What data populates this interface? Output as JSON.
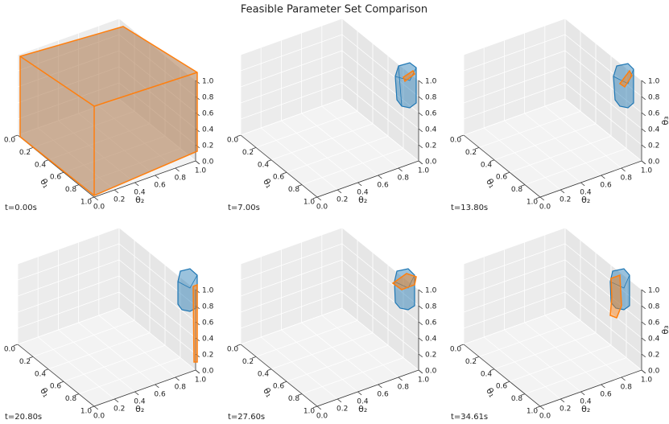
{
  "title": "Feasible Parameter Set Comparison",
  "chart_data": [
    {
      "type": "3d",
      "caption": "t=0.00s",
      "xlabel": "θ₁",
      "ylabel": "θ₂",
      "xlim": [
        0,
        1
      ],
      "ylim": [
        0,
        1
      ],
      "zlim": [
        0,
        1
      ],
      "xticks": [
        {
          "value": 0,
          "label": "0.0"
        },
        {
          "value": 0.2,
          "label": "0.2"
        },
        {
          "value": 0.4,
          "label": "0.4"
        },
        {
          "value": 0.6,
          "label": "0.6"
        },
        {
          "value": 0.8,
          "label": "0.8"
        },
        {
          "value": 1,
          "label": "1.0"
        }
      ],
      "yticks": [
        {
          "value": 0,
          "label": "0.0"
        },
        {
          "value": 0.2,
          "label": "0.2"
        },
        {
          "value": 0.4,
          "label": "0.4"
        },
        {
          "value": 0.6,
          "label": "0.6"
        },
        {
          "value": 0.8,
          "label": "0.8"
        },
        {
          "value": 1,
          "label": "1.0"
        }
      ],
      "zticks": [
        {
          "value": 0,
          "label": "0.0"
        },
        {
          "value": 0.2,
          "label": "0.2"
        },
        {
          "value": 0.4,
          "label": "0.4"
        },
        {
          "value": 0.6,
          "label": "0.6"
        },
        {
          "value": 0.8,
          "label": "0.8"
        },
        {
          "value": 1,
          "label": "1.0"
        }
      ]
    },
    {
      "type": "3d",
      "caption": "t=7.00s",
      "xlabel": "θ₁",
      "ylabel": "θ₂",
      "xlim": [
        0,
        1
      ],
      "ylim": [
        0,
        1
      ],
      "zlim": [
        0,
        1
      ],
      "xticks": [
        {
          "value": 0,
          "label": "0.0"
        },
        {
          "value": 0.2,
          "label": "0.2"
        },
        {
          "value": 0.4,
          "label": "0.4"
        },
        {
          "value": 0.6,
          "label": "0.6"
        },
        {
          "value": 0.8,
          "label": "0.8"
        },
        {
          "value": 1,
          "label": "1.0"
        }
      ],
      "yticks": [
        {
          "value": 0,
          "label": "0.0"
        },
        {
          "value": 0.2,
          "label": "0.2"
        },
        {
          "value": 0.4,
          "label": "0.4"
        },
        {
          "value": 0.6,
          "label": "0.6"
        },
        {
          "value": 0.8,
          "label": "0.8"
        },
        {
          "value": 1,
          "label": "1.0"
        }
      ],
      "zticks": [
        {
          "value": 0,
          "label": "0.0"
        },
        {
          "value": 0.2,
          "label": "0.2"
        },
        {
          "value": 0.4,
          "label": "0.4"
        },
        {
          "value": 0.6,
          "label": "0.6"
        },
        {
          "value": 0.8,
          "label": "0.8"
        },
        {
          "value": 1,
          "label": "1.0"
        }
      ]
    },
    {
      "type": "3d",
      "caption": "t=13.80s",
      "xlabel": "θ₁",
      "ylabel": "θ₂",
      "zlabel": "θ₃",
      "xlim": [
        0,
        1
      ],
      "ylim": [
        0,
        1
      ],
      "zlim": [
        0,
        1
      ],
      "xticks": [
        {
          "value": 0,
          "label": "0.0"
        },
        {
          "value": 0.2,
          "label": "0.2"
        },
        {
          "value": 0.4,
          "label": "0.4"
        },
        {
          "value": 0.6,
          "label": "0.6"
        },
        {
          "value": 0.8,
          "label": "0.8"
        },
        {
          "value": 1,
          "label": "1.0"
        }
      ],
      "yticks": [
        {
          "value": 0,
          "label": "0.0"
        },
        {
          "value": 0.2,
          "label": "0.2"
        },
        {
          "value": 0.4,
          "label": "0.4"
        },
        {
          "value": 0.6,
          "label": "0.6"
        },
        {
          "value": 0.8,
          "label": "0.8"
        },
        {
          "value": 1,
          "label": "1.0"
        }
      ],
      "zticks": [
        {
          "value": 0,
          "label": "0.0"
        },
        {
          "value": 0.2,
          "label": "0.2"
        },
        {
          "value": 0.4,
          "label": "0.4"
        },
        {
          "value": 0.6,
          "label": "0.6"
        },
        {
          "value": 0.8,
          "label": "0.8"
        },
        {
          "value": 1,
          "label": "1.0"
        }
      ]
    },
    {
      "type": "3d",
      "caption": "t=20.80s",
      "xlabel": "θ₁",
      "ylabel": "θ₂",
      "xlim": [
        0,
        1
      ],
      "ylim": [
        0,
        1
      ],
      "zlim": [
        0,
        1
      ],
      "xticks": [
        {
          "value": 0,
          "label": "0.0"
        },
        {
          "value": 0.2,
          "label": "0.2"
        },
        {
          "value": 0.4,
          "label": "0.4"
        },
        {
          "value": 0.6,
          "label": "0.6"
        },
        {
          "value": 0.8,
          "label": "0.8"
        },
        {
          "value": 1,
          "label": "1.0"
        }
      ],
      "yticks": [
        {
          "value": 0,
          "label": "0.0"
        },
        {
          "value": 0.2,
          "label": "0.2"
        },
        {
          "value": 0.4,
          "label": "0.4"
        },
        {
          "value": 0.6,
          "label": "0.6"
        },
        {
          "value": 0.8,
          "label": "0.8"
        },
        {
          "value": 1,
          "label": "1.0"
        }
      ],
      "zticks": [
        {
          "value": 0,
          "label": "0.0"
        },
        {
          "value": 0.2,
          "label": "0.2"
        },
        {
          "value": 0.4,
          "label": "0.4"
        },
        {
          "value": 0.6,
          "label": "0.6"
        },
        {
          "value": 0.8,
          "label": "0.8"
        },
        {
          "value": 1,
          "label": "1.0"
        }
      ]
    },
    {
      "type": "3d",
      "caption": "t=27.60s",
      "xlabel": "θ₁",
      "ylabel": "θ₂",
      "xlim": [
        0,
        1
      ],
      "ylim": [
        0,
        1
      ],
      "zlim": [
        0,
        1
      ],
      "xticks": [
        {
          "value": 0,
          "label": "0.0"
        },
        {
          "value": 0.2,
          "label": "0.2"
        },
        {
          "value": 0.4,
          "label": "0.4"
        },
        {
          "value": 0.6,
          "label": "0.6"
        },
        {
          "value": 0.8,
          "label": "0.8"
        },
        {
          "value": 1,
          "label": "1.0"
        }
      ],
      "yticks": [
        {
          "value": 0,
          "label": "0.0"
        },
        {
          "value": 0.2,
          "label": "0.2"
        },
        {
          "value": 0.4,
          "label": "0.4"
        },
        {
          "value": 0.6,
          "label": "0.6"
        },
        {
          "value": 0.8,
          "label": "0.8"
        },
        {
          "value": 1,
          "label": "1.0"
        }
      ],
      "zticks": [
        {
          "value": 0,
          "label": "0.0"
        },
        {
          "value": 0.2,
          "label": "0.2"
        },
        {
          "value": 0.4,
          "label": "0.4"
        },
        {
          "value": 0.6,
          "label": "0.6"
        },
        {
          "value": 0.8,
          "label": "0.8"
        },
        {
          "value": 1,
          "label": "1.0"
        }
      ]
    },
    {
      "type": "3d",
      "caption": "t=34.61s",
      "xlabel": "θ₁",
      "ylabel": "θ₂",
      "zlabel": "θ₃",
      "xlim": [
        0,
        1
      ],
      "ylim": [
        0,
        1
      ],
      "zlim": [
        0,
        1
      ],
      "xticks": [
        {
          "value": 0,
          "label": "0.0"
        },
        {
          "value": 0.2,
          "label": "0.2"
        },
        {
          "value": 0.4,
          "label": "0.4"
        },
        {
          "value": 0.6,
          "label": "0.6"
        },
        {
          "value": 0.8,
          "label": "0.8"
        },
        {
          "value": 1,
          "label": "1.0"
        }
      ],
      "yticks": [
        {
          "value": 0,
          "label": "0.0"
        },
        {
          "value": 0.2,
          "label": "0.2"
        },
        {
          "value": 0.4,
          "label": "0.4"
        },
        {
          "value": 0.6,
          "label": "0.6"
        },
        {
          "value": 0.8,
          "label": "0.8"
        },
        {
          "value": 1,
          "label": "1.0"
        }
      ],
      "zticks": [
        {
          "value": 0,
          "label": "0.0"
        },
        {
          "value": 0.2,
          "label": "0.2"
        },
        {
          "value": 0.4,
          "label": "0.4"
        },
        {
          "value": 0.6,
          "label": "0.6"
        },
        {
          "value": 0.8,
          "label": "0.8"
        },
        {
          "value": 1,
          "label": "1.0"
        }
      ]
    }
  ]
}
